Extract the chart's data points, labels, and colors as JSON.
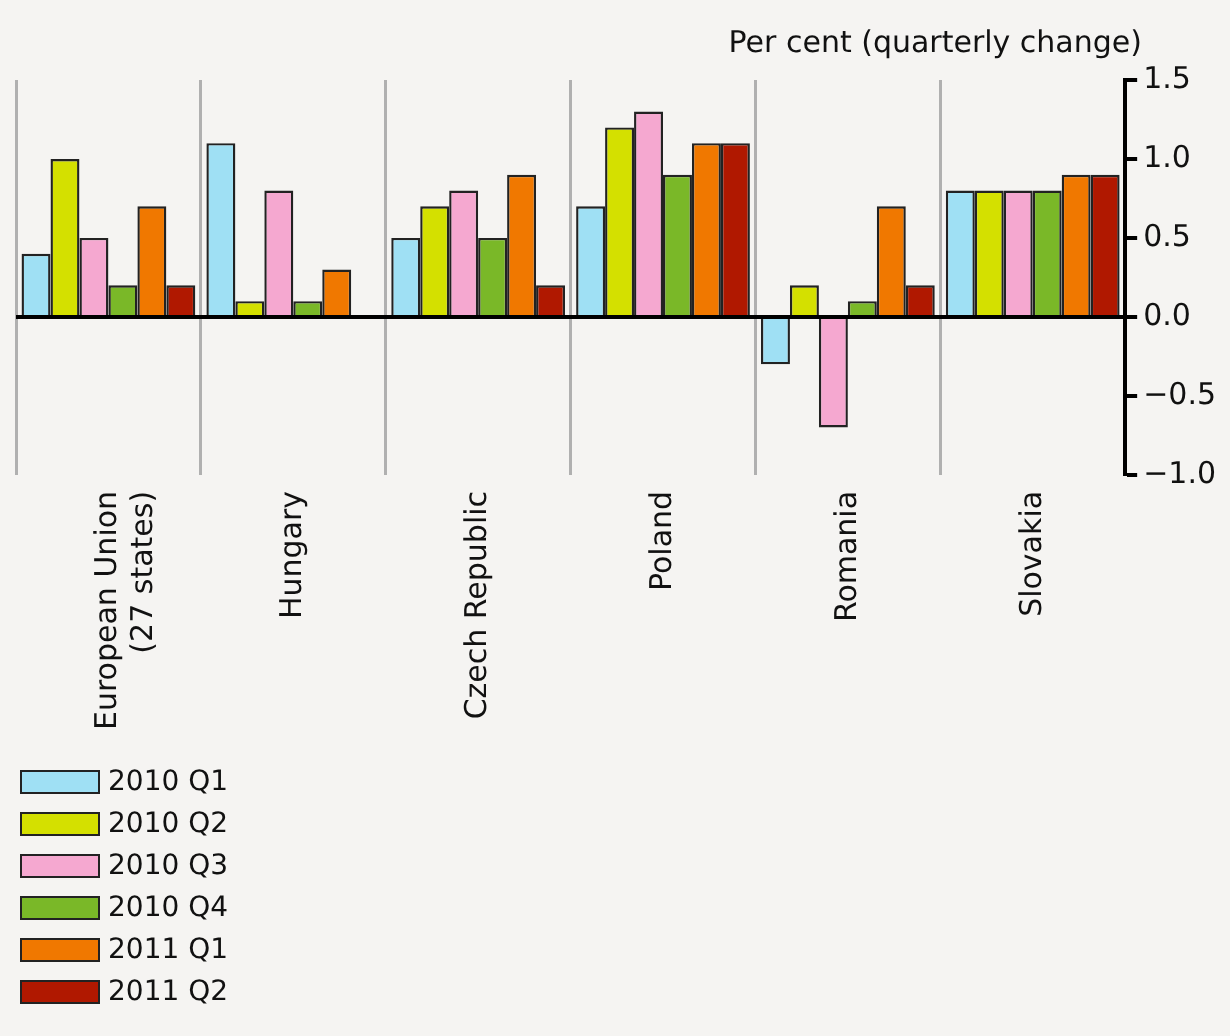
{
  "chart_data": {
    "type": "bar",
    "ylabel": "Per cent (quarterly change)",
    "categories": [
      "European Union (27 states)",
      "Hungary",
      "Czech Republic",
      "Poland",
      "Romania",
      "Slovakia"
    ],
    "series": [
      {
        "name": "2010 Q1",
        "color": "#9fe0f4",
        "values": [
          0.4,
          1.1,
          0.5,
          0.7,
          -0.3,
          0.8
        ]
      },
      {
        "name": "2010 Q2",
        "color": "#d4e000",
        "values": [
          1.0,
          0.1,
          0.7,
          1.2,
          0.2,
          0.8
        ]
      },
      {
        "name": "2010 Q3",
        "color": "#f5a8d0",
        "values": [
          0.5,
          0.8,
          0.8,
          1.3,
          -0.7,
          0.8
        ]
      },
      {
        "name": "2010 Q4",
        "color": "#7ab828",
        "values": [
          0.2,
          0.1,
          0.5,
          0.9,
          0.1,
          0.8
        ]
      },
      {
        "name": "2011 Q1",
        "color": "#f07800",
        "values": [
          0.7,
          0.3,
          0.9,
          1.1,
          0.7,
          0.9
        ]
      },
      {
        "name": "2011 Q2",
        "color": "#b01800",
        "values": [
          0.2,
          null,
          0.2,
          1.1,
          0.2,
          0.9
        ]
      }
    ],
    "ylim": [
      -1,
      1.5
    ],
    "yticks": [
      {
        "value": -1,
        "label": "−1.0"
      },
      {
        "value": -0.5,
        "label": "−0.5"
      },
      {
        "value": 0,
        "label": "0.0"
      },
      {
        "value": 0.5,
        "label": "0.5"
      },
      {
        "value": 1,
        "label": "1.0"
      },
      {
        "value": 1.5,
        "label": "1.5"
      }
    ],
    "grid": "x",
    "legend": "bottom left"
  }
}
